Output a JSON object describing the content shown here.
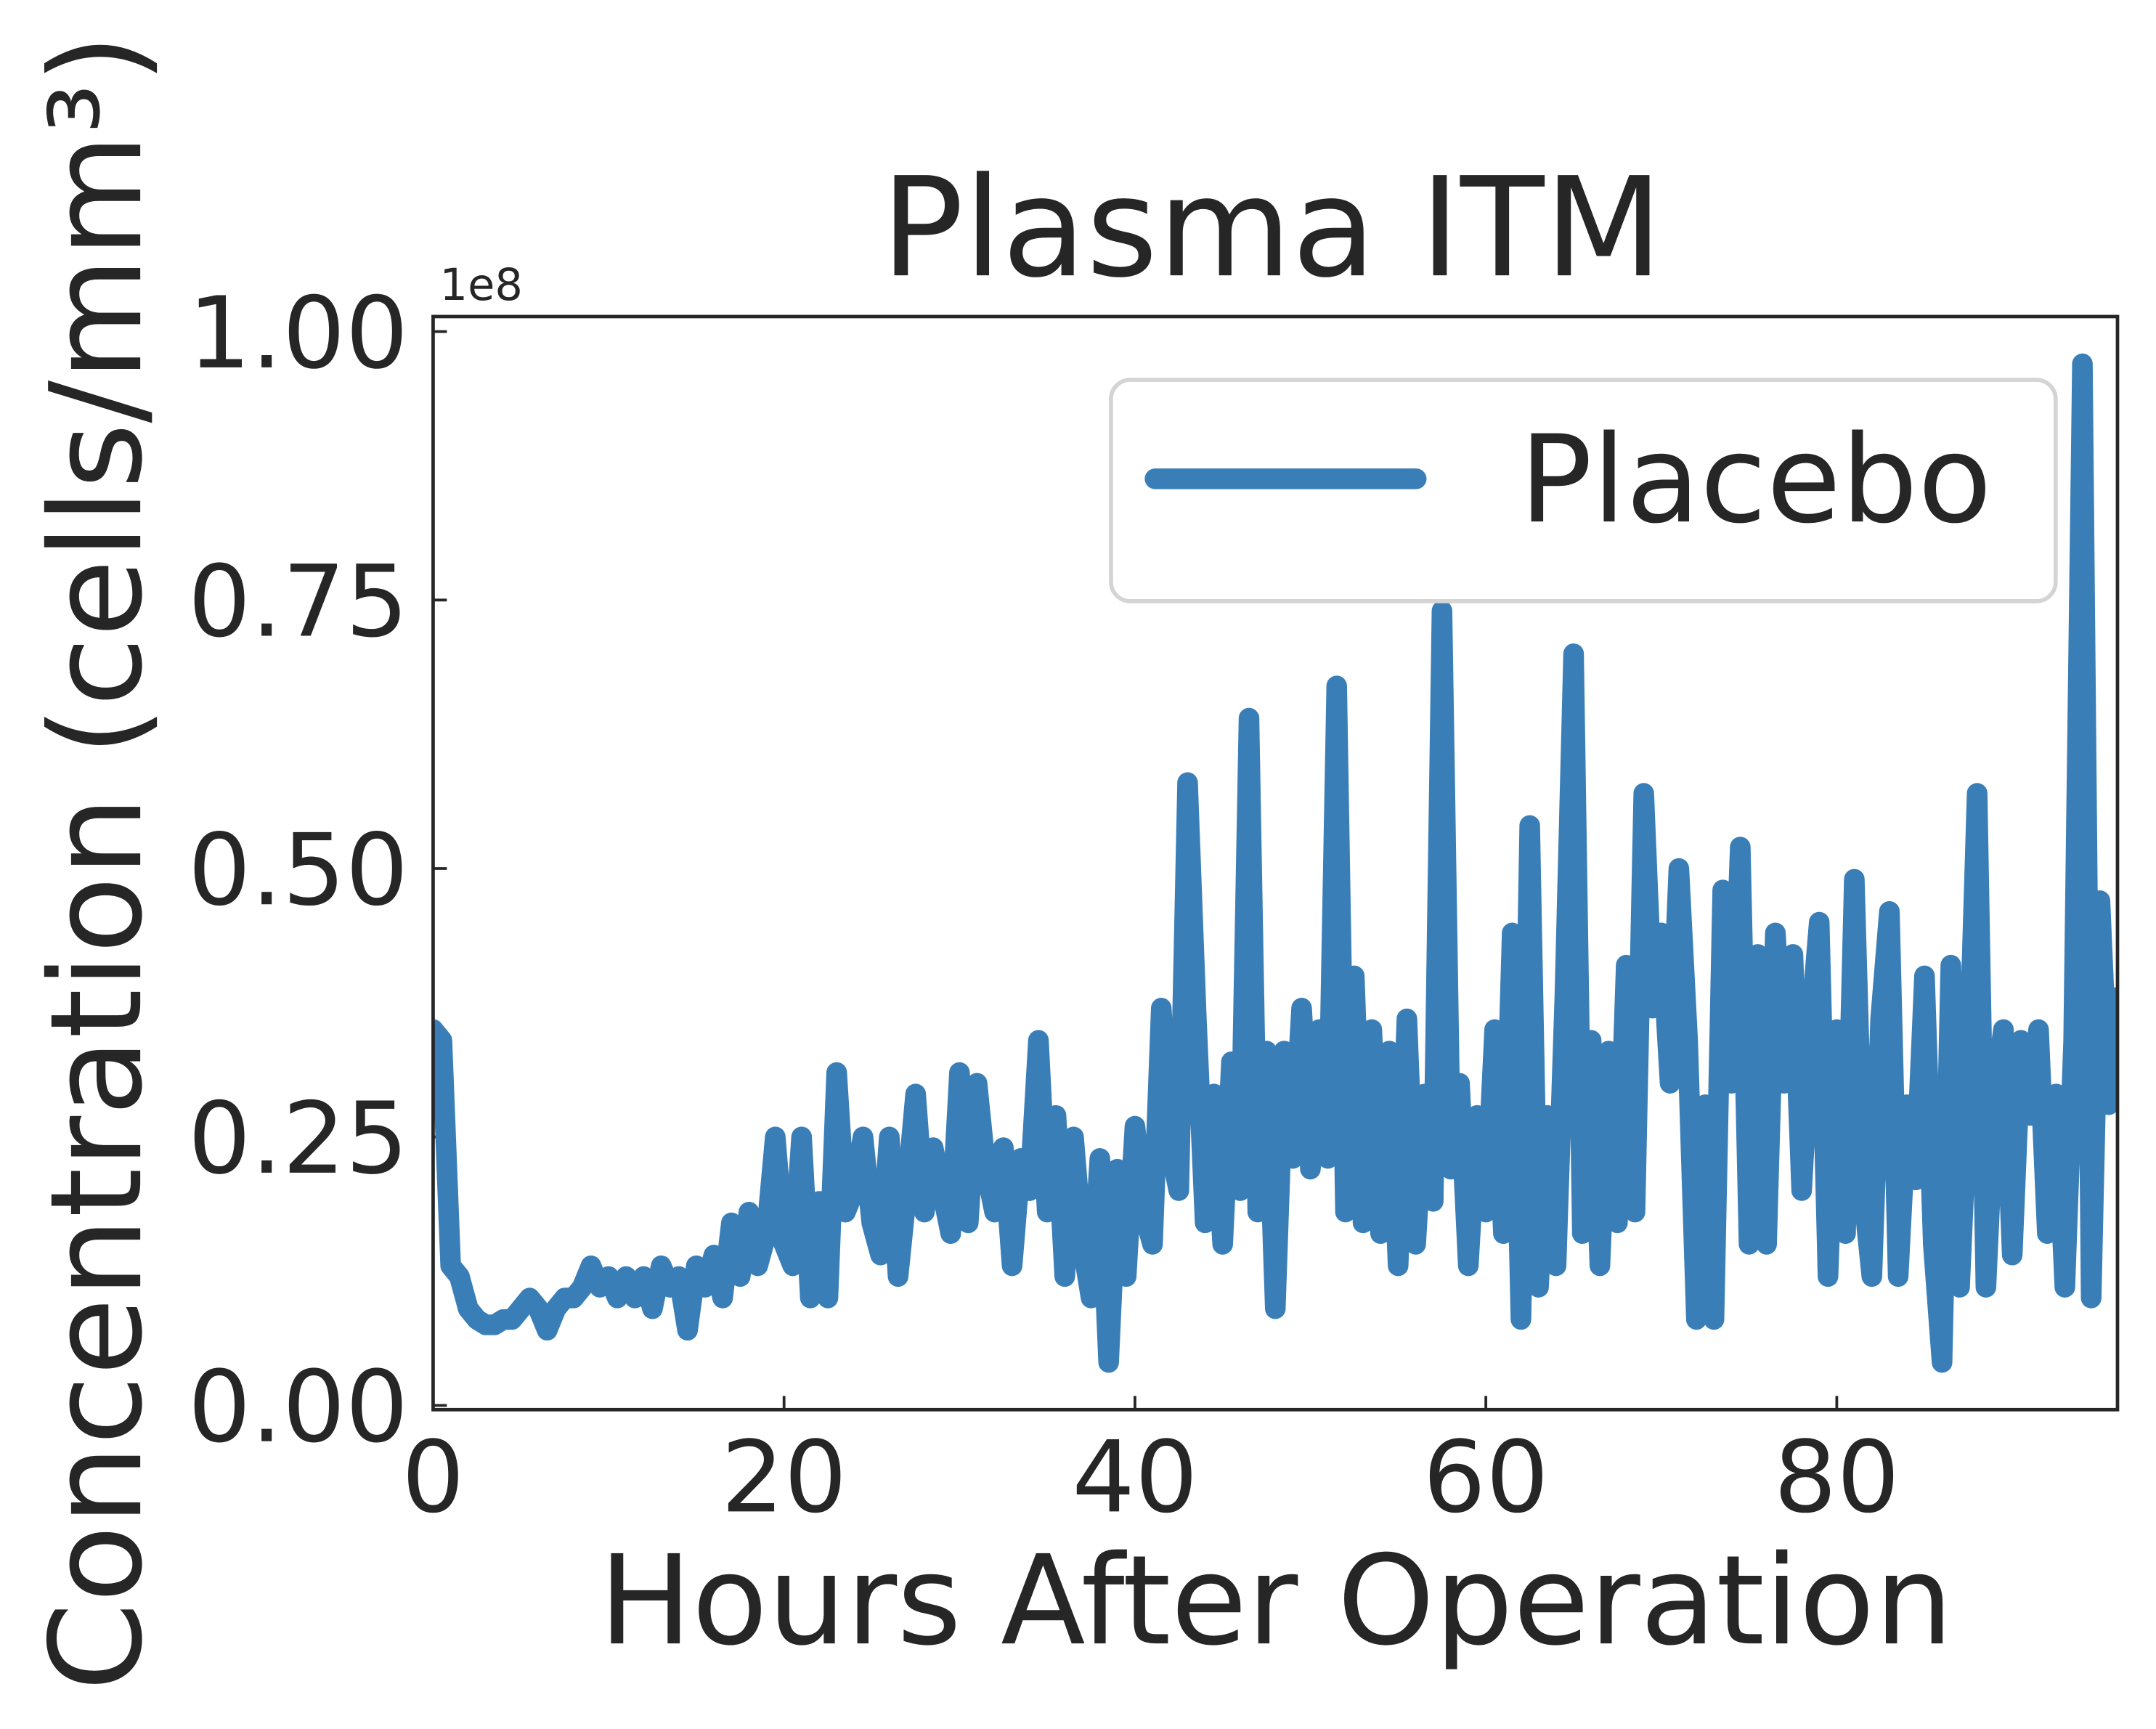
{
  "chart_data": {
    "type": "line",
    "title": "Plasma ITM",
    "x_label": "Hours After Operation",
    "y_label": "Concentration (cells/mm³)",
    "y_offset_label": "1e8",
    "xlim": [
      0,
      96
    ],
    "ylim": [
      -0.004,
      1.014
    ],
    "xticks": [
      0,
      20,
      40,
      60,
      80
    ],
    "yticks": [
      {
        "value": 0,
        "label": "0.00"
      },
      {
        "value": 0.25,
        "label": "0.25"
      },
      {
        "value": 0.5,
        "label": "0.50"
      },
      {
        "value": 0.75,
        "label": "0.75"
      },
      {
        "value": 1,
        "label": "1.00"
      }
    ],
    "legend": "upper right",
    "x": [
      0,
      0.5,
      1,
      1.5,
      2,
      2.5,
      3,
      3.5,
      4,
      4.5,
      5,
      5.5,
      6,
      6.5,
      7,
      7.5,
      8,
      8.5,
      9,
      9.5,
      10,
      10.5,
      11,
      11.5,
      12,
      12.5,
      13,
      13.5,
      14,
      14.5,
      15,
      15.5,
      16,
      16.5,
      17,
      17.5,
      18,
      18.5,
      19,
      19.5,
      20,
      20.5,
      21,
      21.5,
      22,
      22.5,
      23,
      23.5,
      24,
      24.5,
      25,
      25.5,
      26,
      26.5,
      27,
      27.5,
      28,
      28.5,
      29,
      29.5,
      30,
      30.5,
      31,
      31.5,
      32,
      32.5,
      33,
      33.5,
      34,
      34.5,
      35,
      35.5,
      36,
      36.5,
      37,
      37.5,
      38,
      38.5,
      39,
      39.5,
      40,
      40.5,
      41,
      41.5,
      42,
      42.5,
      43,
      43.5,
      44,
      44.5,
      45,
      45.5,
      46,
      46.5,
      47,
      47.5,
      48,
      48.5,
      49,
      49.5,
      50,
      50.5,
      51,
      51.5,
      52,
      52.5,
      53,
      53.5,
      54,
      54.5,
      55,
      55.5,
      56,
      56.5,
      57,
      57.5,
      58,
      58.5,
      59,
      59.5,
      60,
      60.5,
      61,
      61.5,
      62,
      62.5,
      63,
      63.5,
      64,
      64.5,
      65,
      65.5,
      66,
      66.5,
      67,
      67.5,
      68,
      68.5,
      69,
      69.5,
      70,
      70.5,
      71,
      71.5,
      72,
      72.5,
      73,
      73.5,
      74,
      74.5,
      75,
      75.5,
      76,
      76.5,
      77,
      77.5,
      78,
      78.5,
      79,
      79.5,
      80,
      80.5,
      81,
      81.5,
      82,
      82.5,
      83,
      83.5,
      84,
      84.5,
      85,
      85.5,
      86,
      86.5,
      87,
      87.5,
      88,
      88.5,
      89,
      89.5,
      90,
      90.5,
      91,
      91.5,
      92,
      92.5,
      93,
      93.5,
      94,
      94.5,
      95,
      95.5,
      96
    ],
    "series": [
      {
        "name": "Placebo",
        "color": "#3a7eb8",
        "values": [
          0.35,
          0.34,
          0.13,
          0.12,
          0.09,
          0.08,
          0.075,
          0.075,
          0.08,
          0.08,
          0.09,
          0.1,
          0.09,
          0.07,
          0.09,
          0.1,
          0.1,
          0.11,
          0.13,
          0.11,
          0.12,
          0.1,
          0.12,
          0.1,
          0.12,
          0.09,
          0.13,
          0.11,
          0.12,
          0.07,
          0.13,
          0.11,
          0.14,
          0.1,
          0.17,
          0.12,
          0.18,
          0.13,
          0.16,
          0.25,
          0.15,
          0.13,
          0.25,
          0.1,
          0.19,
          0.1,
          0.31,
          0.18,
          0.2,
          0.25,
          0.17,
          0.14,
          0.25,
          0.12,
          0.2,
          0.29,
          0.18,
          0.24,
          0.2,
          0.16,
          0.31,
          0.17,
          0.3,
          0.22,
          0.18,
          0.24,
          0.13,
          0.23,
          0.2,
          0.34,
          0.18,
          0.27,
          0.12,
          0.25,
          0.15,
          0.1,
          0.23,
          0.04,
          0.22,
          0.12,
          0.26,
          0.18,
          0.15,
          0.37,
          0.24,
          0.2,
          0.58,
          0.36,
          0.17,
          0.29,
          0.15,
          0.32,
          0.2,
          0.64,
          0.18,
          0.33,
          0.09,
          0.33,
          0.23,
          0.37,
          0.22,
          0.35,
          0.23,
          0.67,
          0.18,
          0.4,
          0.17,
          0.35,
          0.16,
          0.33,
          0.13,
          0.36,
          0.15,
          0.29,
          0.19,
          0.74,
          0.22,
          0.3,
          0.13,
          0.27,
          0.18,
          0.35,
          0.16,
          0.44,
          0.08,
          0.54,
          0.11,
          0.27,
          0.13,
          0.38,
          0.7,
          0.16,
          0.34,
          0.13,
          0.33,
          0.17,
          0.41,
          0.18,
          0.57,
          0.37,
          0.44,
          0.3,
          0.5,
          0.34,
          0.08,
          0.28,
          0.08,
          0.48,
          0.3,
          0.52,
          0.15,
          0.42,
          0.15,
          0.44,
          0.3,
          0.42,
          0.2,
          0.35,
          0.45,
          0.12,
          0.35,
          0.16,
          0.49,
          0.2,
          0.12,
          0.36,
          0.46,
          0.12,
          0.28,
          0.21,
          0.4,
          0.15,
          0.04,
          0.41,
          0.11,
          0.3,
          0.57,
          0.11,
          0.29,
          0.35,
          0.14,
          0.34,
          0.27,
          0.35,
          0.16,
          0.29,
          0.11,
          0.34,
          0.97,
          0.1,
          0.47,
          0.28,
          0.38
        ]
      }
    ]
  }
}
